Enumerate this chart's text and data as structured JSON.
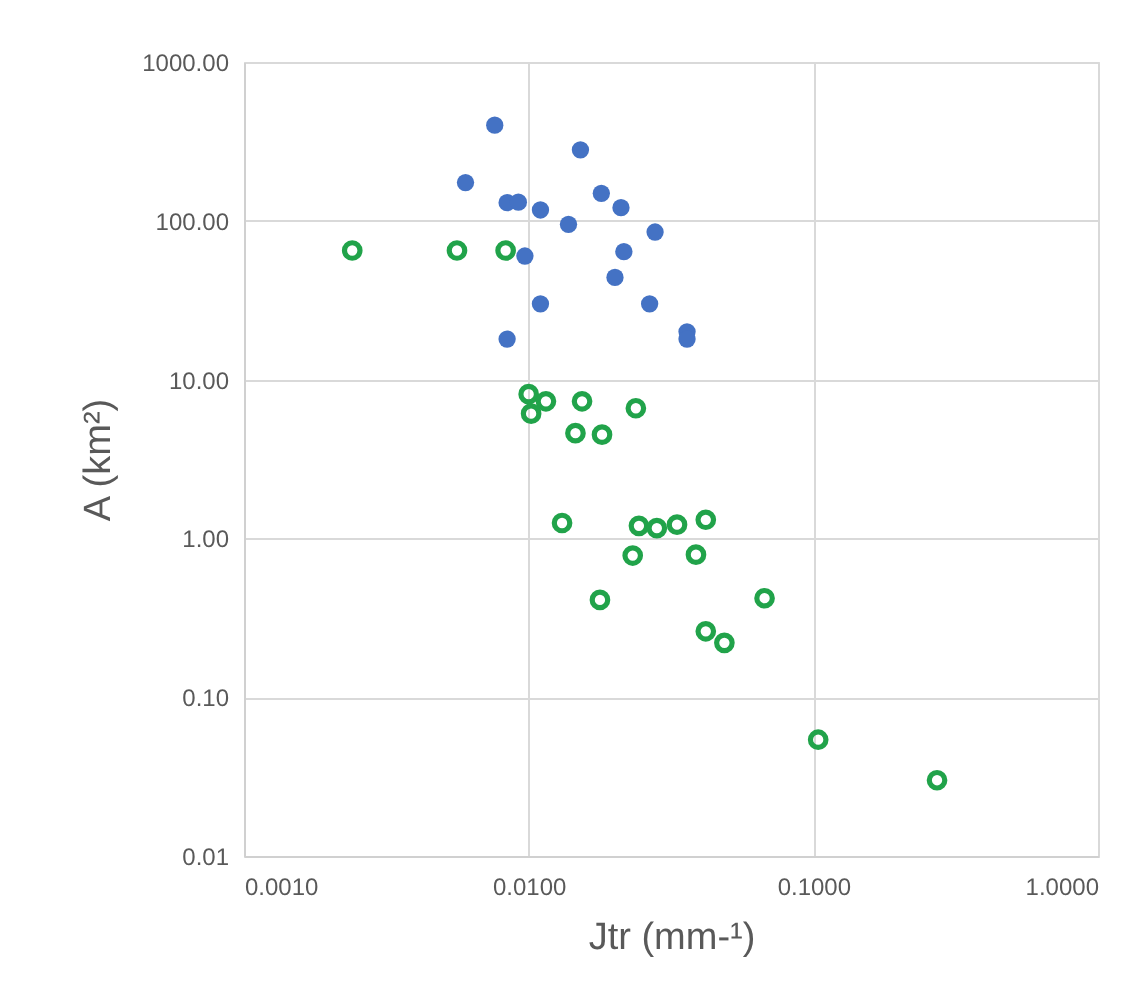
{
  "chart_data": {
    "type": "scatter",
    "xlabel": "Jtr (mm-¹)",
    "ylabel": "A (km²)",
    "log": "xy",
    "grid": true,
    "marker": "circle",
    "xlim": [
      0.001,
      1
    ],
    "xticks": [
      {
        "value": 0.001,
        "label": "0.0010"
      },
      {
        "value": 0.01,
        "label": "0.0100"
      },
      {
        "value": 0.1,
        "label": "0.1000"
      },
      {
        "value": 1,
        "label": "1.0000"
      }
    ],
    "ylim": [
      0.01,
      1000
    ],
    "yticks": [
      {
        "value": 0.01,
        "label": "0.01"
      },
      {
        "value": 0.1,
        "label": "0.10"
      },
      {
        "value": 1,
        "label": "1.00"
      },
      {
        "value": 10,
        "label": "10.00"
      },
      {
        "value": 100,
        "label": "100.00"
      },
      {
        "value": 1000,
        "label": "1000.00"
      }
    ],
    "series": [
      {
        "color": "#4472c4",
        "x": [
          0.0076,
          0.006,
          0.0084,
          0.0092,
          0.011,
          0.0152,
          0.018,
          0.0211,
          0.0138,
          0.0278,
          0.0097,
          0.0216,
          0.0201,
          0.011,
          0.0266,
          0.0084,
          0.036,
          0.036
        ],
        "values": [
          400,
          174,
          130,
          131,
          117,
          280,
          149,
          121,
          95,
          85,
          60,
          64,
          44,
          30,
          30,
          18,
          20,
          18
        ]
      },
      {
        "color": "#21a34a",
        "x": [
          0.0024,
          0.0056,
          0.0083,
          0.01,
          0.0115,
          0.0102,
          0.0154,
          0.0238,
          0.0146,
          0.0181,
          0.0131,
          0.0244,
          0.0282,
          0.0332,
          0.0419,
          0.0232,
          0.0387,
          0.0178,
          0.0674,
          0.0419,
          0.0487,
          0.104,
          0.272
        ],
        "values": [
          65,
          65,
          65,
          8.1,
          7.3,
          6.1,
          7.3,
          6.6,
          4.6,
          4.5,
          1.25,
          1.2,
          1.16,
          1.22,
          1.31,
          0.78,
          0.79,
          0.41,
          0.42,
          0.26,
          0.22,
          0.054,
          0.03
        ]
      }
    ]
  }
}
